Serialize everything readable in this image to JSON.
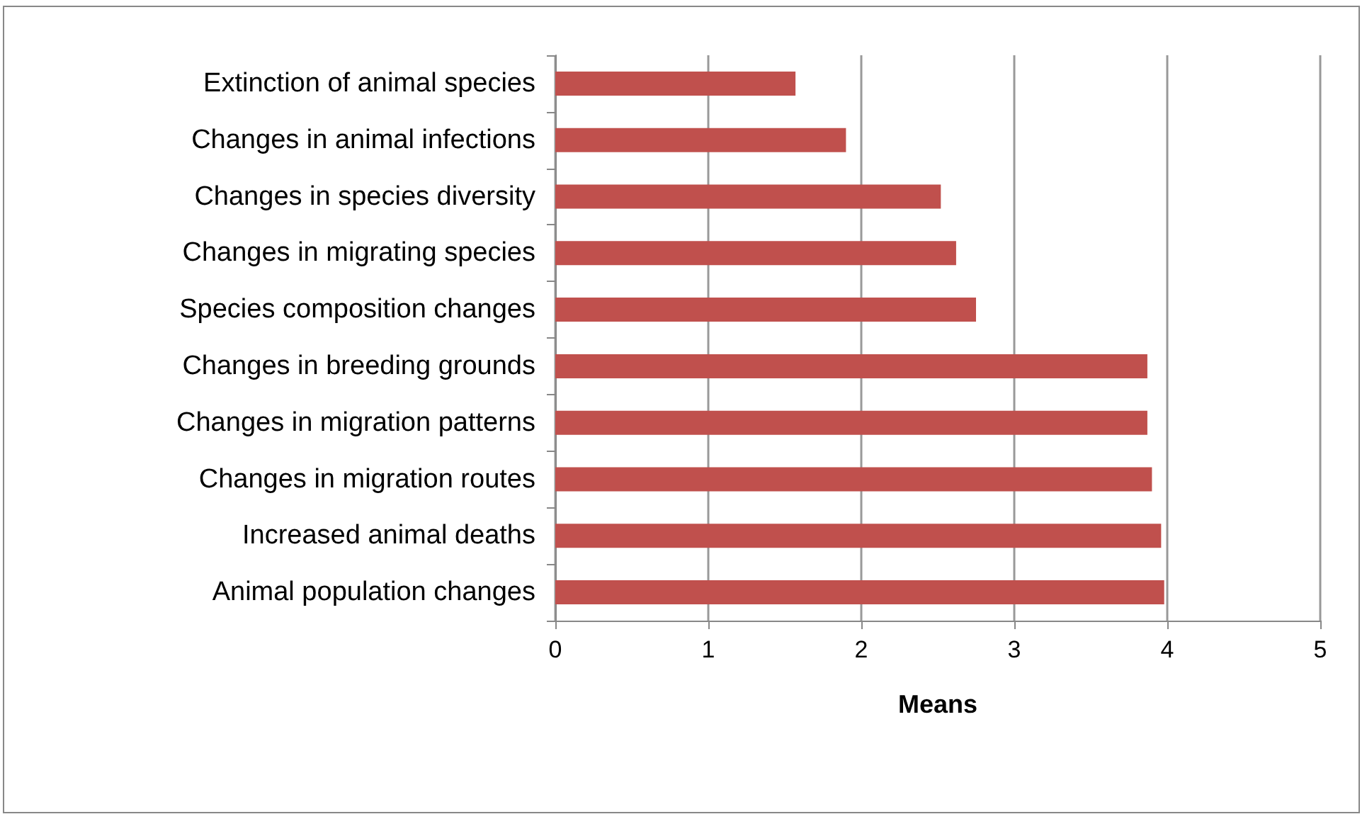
{
  "chart_data": {
    "type": "bar",
    "orientation": "horizontal",
    "xlabel": "Means",
    "categories": [
      "Extinction of animal species",
      "Changes in animal infections",
      "Changes in species diversity",
      "Changes in migrating species",
      "Species composition changes",
      "Changes in breeding grounds",
      "Changes in migration patterns",
      "Changes in migration routes",
      "Increased animal deaths",
      "Animal population changes"
    ],
    "values": [
      1.57,
      1.9,
      2.52,
      2.62,
      2.75,
      3.87,
      3.87,
      3.9,
      3.96,
      3.98
    ],
    "color": "#c0504d",
    "xlim": [
      0,
      5
    ],
    "xticks": [
      0,
      1,
      2,
      3,
      4,
      5
    ],
    "grid": "x"
  }
}
